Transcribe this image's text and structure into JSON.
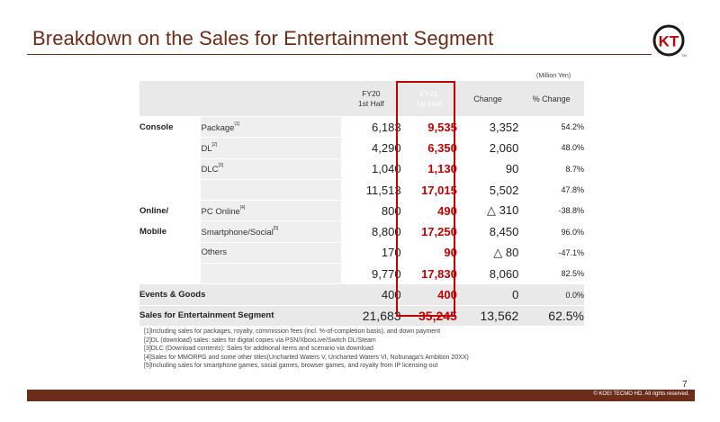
{
  "title": "Breakdown on the Sales for Entertainment Segment",
  "logo_text": "KT",
  "logo_mark": "TM",
  "unit_note": "(Million Yen)",
  "header": {
    "fy20_line1": "FY20",
    "fy20_line2": "1st Half",
    "fy21_line1": "FY21",
    "fy21_line2": "1st Half",
    "change": "Change",
    "pct_change": "% Change"
  },
  "rows": [
    {
      "cat": "Console",
      "sub": "Package",
      "note": "[1]",
      "fy20": "6,183",
      "fy21": "9,535",
      "chg": "3,352",
      "pct": "54.2%"
    },
    {
      "cat": "",
      "sub": "DL",
      "note": "[2]",
      "fy20": "4,290",
      "fy21": "6,350",
      "chg": "2,060",
      "pct": "48.0%"
    },
    {
      "cat": "",
      "sub": "DLC",
      "note": "[3]",
      "fy20": "1,040",
      "fy21": "1,130",
      "chg": "90",
      "pct": "8.7%"
    },
    {
      "cat": "",
      "sub": "",
      "note": "",
      "fy20": "11,513",
      "fy21": "17,015",
      "chg": "5,502",
      "pct": "47.8%"
    },
    {
      "cat": "Online/",
      "sub": "PC Online",
      "note": "[4]",
      "fy20": "800",
      "fy21": "490",
      "chg": "△ 310",
      "pct": "-38.8%"
    },
    {
      "cat": "Mobile",
      "sub": "Smartphone/Social",
      "note": "[5]",
      "fy20": "8,800",
      "fy21": "17,250",
      "chg": "8,450",
      "pct": "96.0%"
    },
    {
      "cat": "",
      "sub": "Others",
      "note": "",
      "fy20": "170",
      "fy21": "90",
      "chg": "△ 80",
      "pct": "-47.1%"
    },
    {
      "cat": "",
      "sub": "",
      "note": "",
      "fy20": "9,770",
      "fy21": "17,830",
      "chg": "8,060",
      "pct": "82.5%"
    }
  ],
  "events": {
    "label": "Events & Goods",
    "fy20": "400",
    "fy21": "400",
    "chg": "0",
    "pct": "0.0%"
  },
  "grand_total": {
    "label": "Sales for Entertainment Segment",
    "fy20": "21,683",
    "fy21": "35,245",
    "chg": "13,562",
    "pct": "62.5%"
  },
  "notes": [
    "[1]Including sales for packages, royalty, commission fees (incl. %-of-completion basis), and down payment",
    "[2]DL (download) sales: sales for digital copies via PSN/XboxLive/Switch DL/Steam",
    "[3]DLC (Download contents): Sales for additional items and scenario via download",
    "[4]Sales for MMORPG and some other titles(Uncharted Waters V, Uncharted Waters VI, Nobunaga's Ambition 20XX)",
    "[5]Including sales for smartphone games, social games, browser games, and royalty from IP licensing-out"
  ],
  "page_number": "7",
  "copyright": "© KOEI TECMO HD. All rights reserved.",
  "colors": {
    "brand_brown": "#6b2d1a",
    "highlight_red": "#c00000",
    "row_gray": "#e9e9e9"
  }
}
